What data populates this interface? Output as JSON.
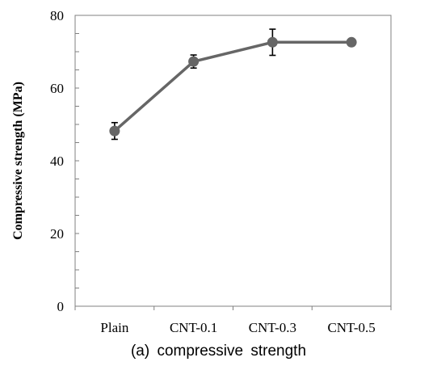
{
  "caption": "(a)  compressive  strength",
  "chart_data": {
    "type": "line",
    "title": "",
    "xlabel": "",
    "ylabel": "Compressive strength (MPa)",
    "categories": [
      "Plain",
      "CNT-0.1",
      "CNT-0.3",
      "CNT-0.5"
    ],
    "ylim": [
      0,
      80
    ],
    "yticks": [
      0,
      20,
      40,
      60,
      80
    ],
    "grid": false,
    "legend": "none",
    "series": [
      {
        "values": [
          48.2,
          67.3,
          72.6,
          72.6
        ],
        "error": [
          2.3,
          1.8,
          3.6,
          0
        ],
        "color": "#666666"
      }
    ]
  }
}
